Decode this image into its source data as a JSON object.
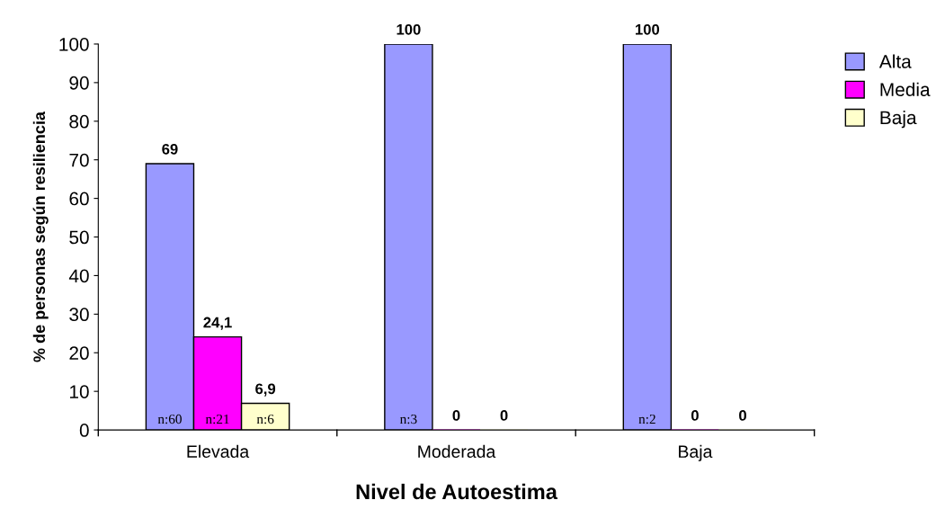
{
  "chart_data": {
    "type": "bar",
    "xlabel": "Nivel de Autoestima",
    "ylabel": "% de personas según resiliencia",
    "categories": [
      "Elevada",
      "Moderada",
      "Baja"
    ],
    "series": [
      {
        "name": "Alta",
        "color": "#9999ff",
        "values": [
          69,
          100,
          100
        ],
        "value_labels": [
          "69",
          "100",
          "100"
        ]
      },
      {
        "name": "Media",
        "color": "#ff00ff",
        "values": [
          24.1,
          0,
          0
        ],
        "value_labels": [
          "24,1",
          "0",
          "0"
        ]
      },
      {
        "name": "Baja",
        "color": "#ffffcc",
        "values": [
          6.9,
          0,
          0
        ],
        "value_labels": [
          "6,9",
          "0",
          "0"
        ]
      }
    ],
    "annotations": [
      {
        "text": "n:60",
        "x": "Elevada",
        "y": 0
      },
      {
        "text": "n:21",
        "x": "Elevada",
        "y": 0
      },
      {
        "text": "n:6",
        "x": "Elevada",
        "y": 0
      },
      {
        "text": "n:3",
        "x": "Moderada",
        "y": 0
      },
      {
        "text": "n:2",
        "x": "Baja",
        "y": 0
      }
    ],
    "ylim": [
      0,
      100
    ],
    "yticks": [
      0,
      10,
      20,
      30,
      40,
      50,
      60,
      70,
      80,
      90,
      100
    ],
    "grid": false,
    "legend": "top right"
  }
}
